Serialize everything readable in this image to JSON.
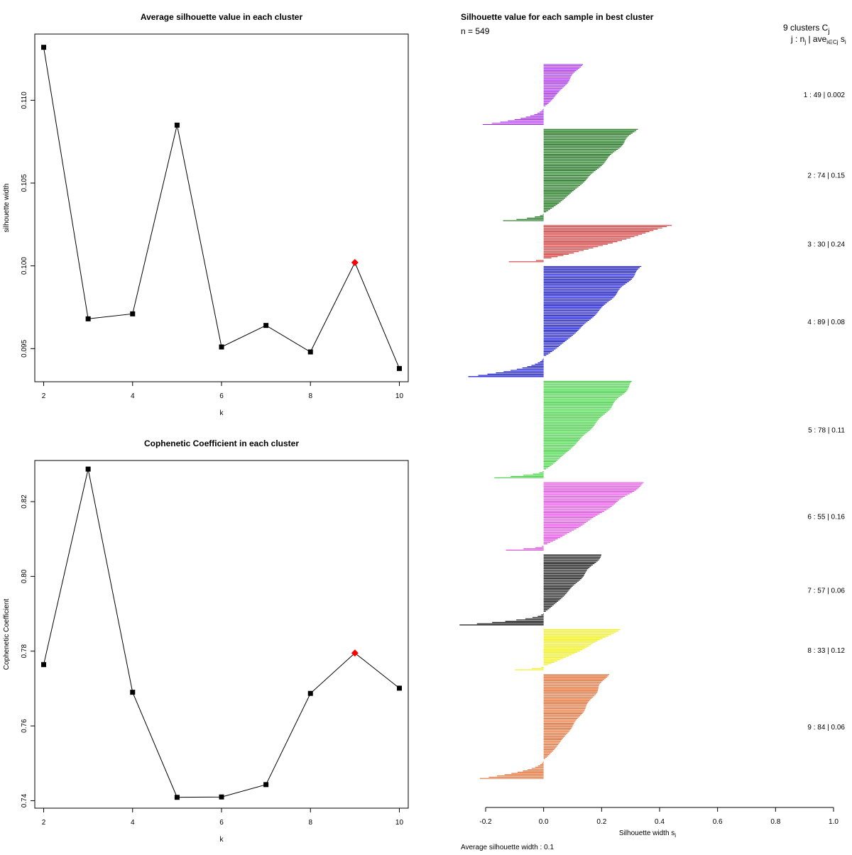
{
  "chart_data": [
    {
      "type": "line",
      "title": "Average silhouette value in each cluster",
      "xlabel": "k",
      "ylabel": "silhouette width",
      "x": [
        2,
        3,
        4,
        5,
        6,
        7,
        8,
        9,
        10
      ],
      "y": [
        0.1132,
        0.0968,
        0.0971,
        0.1085,
        0.0951,
        0.0964,
        0.0948,
        0.1002,
        0.0938
      ],
      "highlight_k": 9,
      "highlight_color": "#ff0000",
      "xlim": [
        1.8,
        10.2
      ],
      "ylim": [
        0.093,
        0.114
      ],
      "xticks": [
        2,
        4,
        6,
        8,
        10
      ],
      "xtick_labels": [
        "2",
        "4",
        "6",
        "8",
        "10"
      ],
      "yticks": [
        0.095,
        0.1,
        0.105,
        0.11
      ],
      "ytick_labels": [
        "0.095",
        "0.100",
        "0.105",
        "0.110"
      ]
    },
    {
      "type": "line",
      "title": "Cophenetic Coefficient in each cluster",
      "xlabel": "k",
      "ylabel": "Cophenetic Coefficient",
      "x": [
        2,
        3,
        4,
        5,
        6,
        7,
        8,
        9,
        10
      ],
      "y": [
        0.7764,
        0.8287,
        0.769,
        0.7409,
        0.741,
        0.7443,
        0.7687,
        0.7795,
        0.7701
      ],
      "highlight_k": 9,
      "highlight_color": "#ff0000",
      "xlim": [
        1.8,
        10.2
      ],
      "ylim": [
        0.738,
        0.831
      ],
      "xticks": [
        2,
        4,
        6,
        8,
        10
      ],
      "xtick_labels": [
        "2",
        "4",
        "6",
        "8",
        "10"
      ],
      "yticks": [
        0.74,
        0.76,
        0.78,
        0.8,
        0.82
      ],
      "ytick_labels": [
        "0.74",
        "0.76",
        "0.78",
        "0.80",
        "0.82"
      ]
    },
    {
      "type": "bar",
      "orientation": "horizontal",
      "title": "Silhouette value for each sample in best cluster",
      "n_label": "n = 549",
      "xlabel": "Silhouette width s",
      "xlabel_sub": "i",
      "footer": "Average silhouette width :  0.1",
      "xlim": [
        -0.2,
        1.0
      ],
      "xticks": [
        -0.2,
        0.0,
        0.2,
        0.4,
        0.6,
        0.8,
        1.0
      ],
      "xtick_labels": [
        "-0.2",
        "0.0",
        "0.2",
        "0.4",
        "0.6",
        "0.8",
        "1.0"
      ],
      "legend_title": "9  clusters  C",
      "legend_title_sub": "j",
      "legend_header": "j :  n",
      "legend_header_sub1": "j",
      "legend_header_mid": " | ave",
      "legend_header_sub2": "i∈Cj",
      "legend_header_end": "  s",
      "legend_header_sub3": "i",
      "clusters": [
        {
          "id": 1,
          "n": 49,
          "avg": 0.002,
          "label": "1 :   49  |  0.002",
          "color": "#a020f0",
          "max": 0.13,
          "min": -0.21
        },
        {
          "id": 2,
          "n": 74,
          "avg": 0.15,
          "label": "2 :   74  |  0.15",
          "color": "#006400",
          "max": 0.32,
          "min": -0.14
        },
        {
          "id": 3,
          "n": 30,
          "avg": 0.24,
          "label": "3 :   30  |  0.24",
          "color": "#cd2626",
          "max": 0.44,
          "min": -0.12
        },
        {
          "id": 4,
          "n": 89,
          "avg": 0.08,
          "label": "4 :   89  |  0.08",
          "color": "#0000cd",
          "max": 0.34,
          "min": -0.26
        },
        {
          "id": 5,
          "n": 78,
          "avg": 0.11,
          "label": "5 :   78  |  0.11",
          "color": "#32cd32",
          "max": 0.31,
          "min": -0.17
        },
        {
          "id": 6,
          "n": 55,
          "avg": 0.16,
          "label": "6 :   55  |  0.16",
          "color": "#e040e0",
          "max": 0.35,
          "min": -0.13
        },
        {
          "id": 7,
          "n": 57,
          "avg": 0.06,
          "label": "7 :   57  |  0.06",
          "color": "#000000",
          "max": 0.2,
          "min": -0.29
        },
        {
          "id": 8,
          "n": 33,
          "avg": 0.12,
          "label": "8 :   33  |  0.12",
          "color": "#eeee00",
          "max": 0.26,
          "min": -0.1
        },
        {
          "id": 9,
          "n": 84,
          "avg": 0.06,
          "label": "9 :   84  |  0.06",
          "color": "#e06020",
          "max": 0.22,
          "min": -0.22
        }
      ]
    }
  ]
}
